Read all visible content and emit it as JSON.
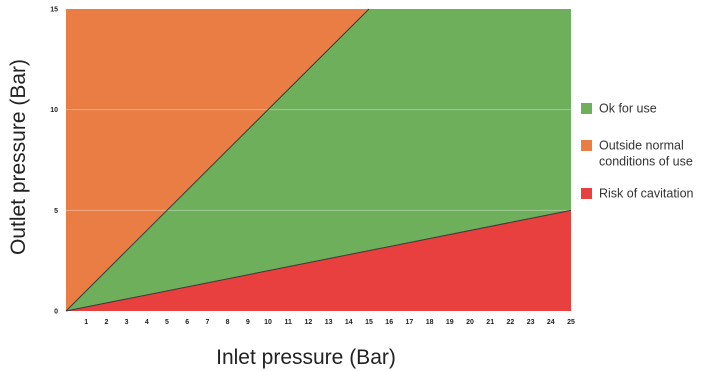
{
  "chart_data": {
    "type": "area",
    "xlabel": "Inlet pressure (Bar)",
    "ylabel": "Outlet pressure (Bar)",
    "xlim": [
      0,
      25
    ],
    "ylim": [
      0,
      15
    ],
    "x_ticks": [
      1,
      2,
      3,
      4,
      5,
      6,
      7,
      8,
      9,
      10,
      11,
      12,
      13,
      14,
      15,
      16,
      17,
      18,
      19,
      20,
      21,
      22,
      23,
      24,
      25
    ],
    "y_ticks": [
      0,
      5,
      10,
      15
    ],
    "grid": "horizontal",
    "legend_position": "right",
    "boundaries": [
      {
        "points": [
          [
            0,
            0
          ],
          [
            15,
            15
          ]
        ]
      },
      {
        "points": [
          [
            0,
            0
          ],
          [
            25,
            5
          ]
        ]
      }
    ],
    "regions": [
      {
        "name": "Outside normal conditions of use",
        "color": "#ea7d43",
        "polygon": [
          [
            0,
            0
          ],
          [
            15,
            15
          ],
          [
            0,
            15
          ]
        ]
      },
      {
        "name": "Ok for use",
        "color": "#6daf5b",
        "polygon": [
          [
            0,
            0
          ],
          [
            25,
            5
          ],
          [
            25,
            15
          ],
          [
            15,
            15
          ]
        ]
      },
      {
        "name": "Risk of cavitation",
        "color": "#e8403f",
        "polygon": [
          [
            0,
            0
          ],
          [
            25,
            0
          ],
          [
            25,
            5
          ]
        ]
      }
    ],
    "legend": [
      {
        "lines": [
          "Ok for use"
        ],
        "color": "#6daf5b"
      },
      {
        "lines": [
          "Outside normal",
          "conditions of use"
        ],
        "color": "#ea7d43"
      },
      {
        "lines": [
          "Risk of cavitation"
        ],
        "color": "#e8403f"
      }
    ]
  }
}
